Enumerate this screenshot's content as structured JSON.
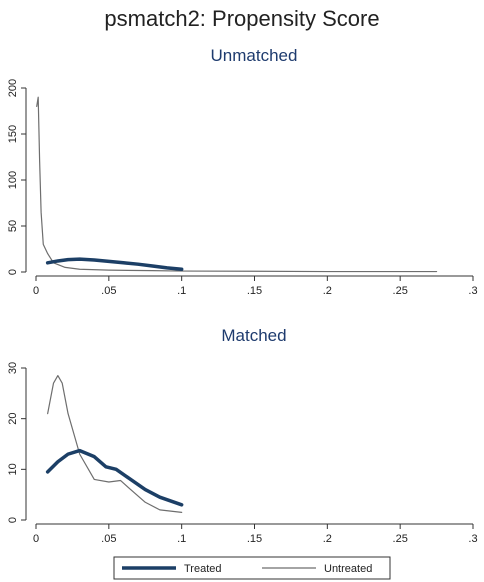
{
  "chart_data": {
    "title": "psmatch2: Propensity Score",
    "legend": {
      "placement": "bottom",
      "items": [
        "Treated",
        "Untreated"
      ]
    },
    "series_colors": {
      "Treated": "#1c3f66",
      "Untreated": "#6e6e6e"
    },
    "panels": [
      {
        "type": "line",
        "subtitle": "Unmatched",
        "xlim": [
          0,
          0.3
        ],
        "ylim": [
          0,
          200
        ],
        "xticks": [
          0,
          0.05,
          0.1,
          0.15,
          0.2,
          0.25,
          0.3
        ],
        "xtick_labels": [
          "0",
          ".05",
          ".1",
          ".15",
          ".2",
          ".25",
          ".3"
        ],
        "yticks": [
          0,
          50,
          100,
          150,
          200
        ],
        "ytick_labels": [
          "0",
          "50",
          "100",
          "150",
          "200"
        ],
        "grid": false,
        "series": [
          {
            "name": "Treated",
            "x": [
              0.008,
              0.015,
              0.022,
              0.03,
              0.04,
              0.05,
              0.06,
              0.07,
              0.08,
              0.09,
              0.1
            ],
            "y": [
              10,
              12,
              13.5,
              14,
              13,
              11.5,
              10,
              8.5,
              6.5,
              4.5,
              3
            ]
          },
          {
            "name": "Untreated",
            "x": [
              0.0005,
              0.0015,
              0.0025,
              0.0035,
              0.005,
              0.008,
              0.012,
              0.02,
              0.03,
              0.05,
              0.08,
              0.1,
              0.15,
              0.2,
              0.275
            ],
            "y": [
              180,
              190,
              120,
              65,
              30,
              20,
              10,
              5,
              3,
              2,
              1.5,
              1,
              0.8,
              0.5,
              0.5
            ]
          }
        ]
      },
      {
        "type": "line",
        "subtitle": "Matched",
        "xlim": [
          0,
          0.3
        ],
        "ylim": [
          0,
          30
        ],
        "xticks": [
          0,
          0.05,
          0.1,
          0.15,
          0.2,
          0.25,
          0.3
        ],
        "xtick_labels": [
          "0",
          ".05",
          ".1",
          ".15",
          ".2",
          ".25",
          ".3"
        ],
        "yticks": [
          0,
          10,
          20,
          30
        ],
        "ytick_labels": [
          "0",
          "10",
          "20",
          "30"
        ],
        "grid": false,
        "series": [
          {
            "name": "Treated",
            "x": [
              0.008,
              0.015,
              0.022,
              0.03,
              0.04,
              0.048,
              0.055,
              0.065,
              0.075,
              0.085,
              0.1
            ],
            "y": [
              9.5,
              11.5,
              13,
              13.7,
              12.5,
              10.5,
              10,
              8,
              6,
              4.5,
              3
            ]
          },
          {
            "name": "Untreated",
            "x": [
              0.008,
              0.012,
              0.015,
              0.018,
              0.022,
              0.03,
              0.04,
              0.05,
              0.058,
              0.065,
              0.075,
              0.085,
              0.1
            ],
            "y": [
              21,
              27,
              28.5,
              27,
              21,
              13,
              8,
              7.5,
              7.8,
              6,
              3.5,
              2,
              1.5
            ]
          }
        ]
      }
    ]
  }
}
